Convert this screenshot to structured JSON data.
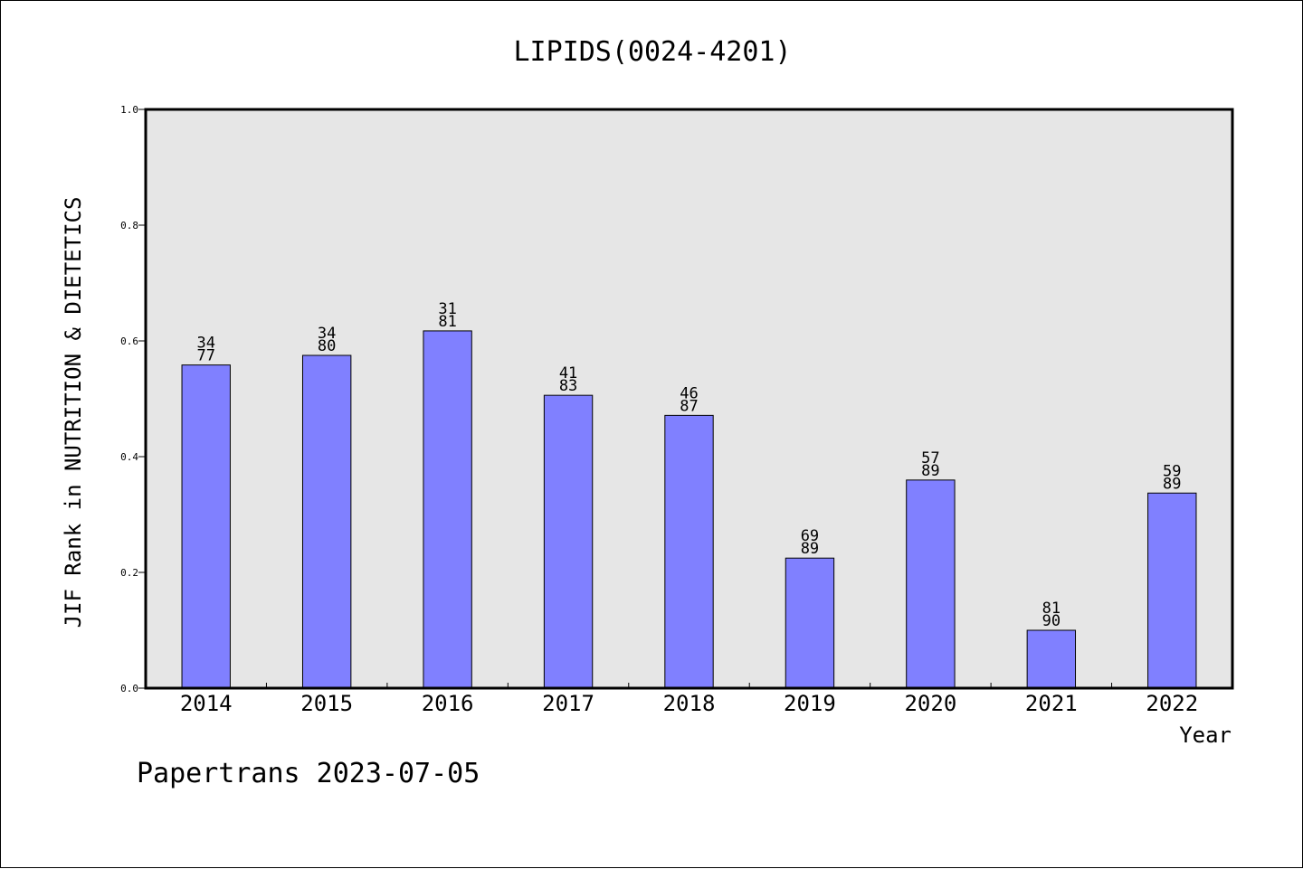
{
  "chart_data": {
    "type": "bar",
    "title": "LIPIDS(0024-4201)",
    "xlabel": "Year",
    "ylabel": "JIF Rank in NUTRITION & DIETETICS",
    "ylim": [
      0,
      1
    ],
    "yticks": [
      "0.0",
      "0.2",
      "0.4",
      "0.6",
      "0.8",
      "1.0"
    ],
    "categories": [
      "2014",
      "2015",
      "2016",
      "2017",
      "2018",
      "2019",
      "2020",
      "2021",
      "2022"
    ],
    "values": [
      0.5584,
      0.575,
      0.6173,
      0.506,
      0.4713,
      0.2247,
      0.3596,
      0.1,
      0.3371
    ],
    "labels": [
      [
        "34",
        "77"
      ],
      [
        "34",
        "80"
      ],
      [
        "31",
        "81"
      ],
      [
        "41",
        "83"
      ],
      [
        "46",
        "87"
      ],
      [
        "69",
        "89"
      ],
      [
        "57",
        "89"
      ],
      [
        "81",
        "90"
      ],
      [
        "59",
        "89"
      ]
    ],
    "grid": false,
    "colors": {
      "bar": "#8080ff",
      "plot_bg": "#e6e6e6"
    }
  },
  "footer": "Papertrans 2023-07-05"
}
